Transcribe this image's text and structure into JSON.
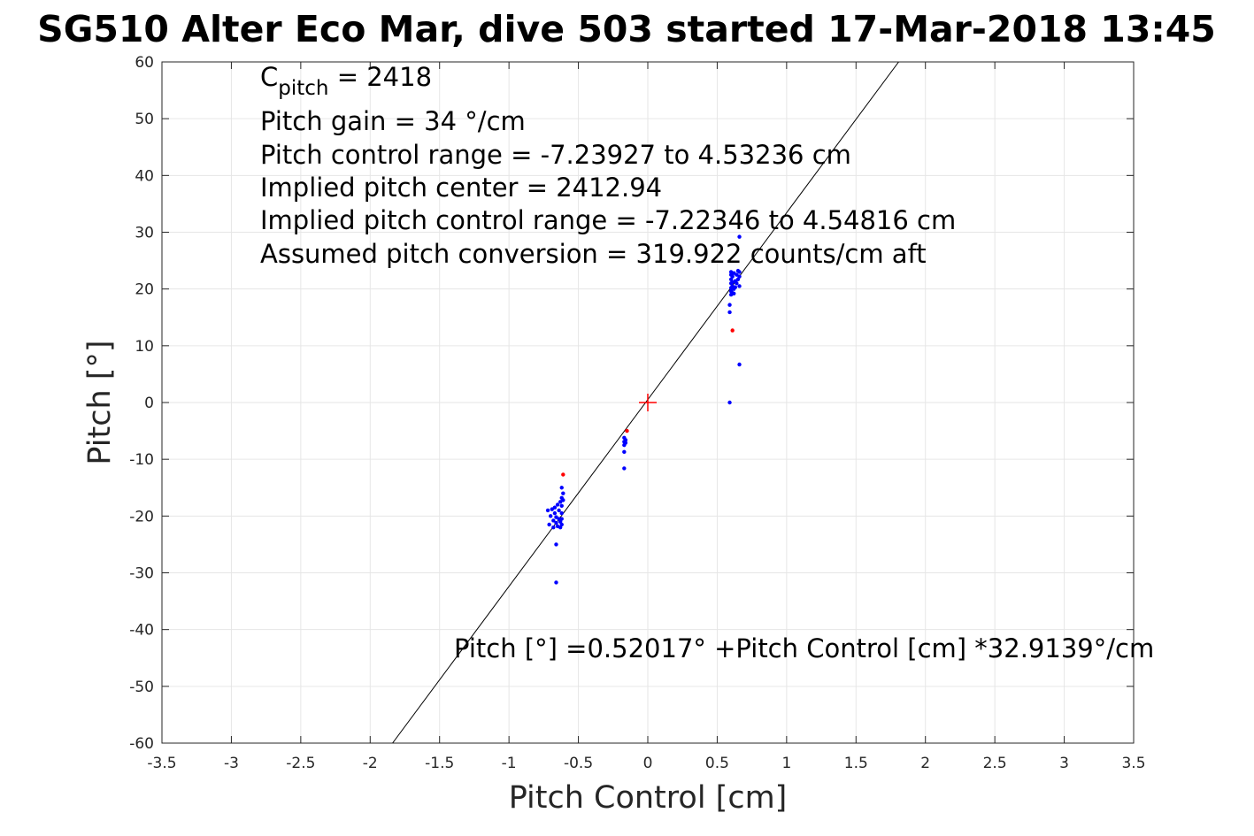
{
  "chart_data": {
    "type": "scatter",
    "title": "SG510 Alter Eco Mar, dive 503 started 17-Mar-2018 13:45",
    "xlabel": "Pitch Control [cm]",
    "ylabel": "Pitch [°]",
    "xlim": [
      -3.5,
      3.5
    ],
    "ylim": [
      -60,
      60
    ],
    "xticks": [
      -3.5,
      -3,
      -2.5,
      -2,
      -1.5,
      -1,
      -0.5,
      0,
      0.5,
      1,
      1.5,
      2,
      2.5,
      3,
      3.5
    ],
    "xtick_labels": [
      "-3.5",
      "-3",
      "-2.5",
      "-2",
      "-1.5",
      "-1",
      "-0.5",
      "0",
      "0.5",
      "1",
      "1.5",
      "2",
      "2.5",
      "3",
      "3.5"
    ],
    "yticks": [
      -60,
      -50,
      -40,
      -30,
      -20,
      -10,
      0,
      10,
      20,
      30,
      40,
      50,
      60
    ],
    "ytick_labels": [
      "-60",
      "-50",
      "-40",
      "-30",
      "-20",
      "-10",
      "0",
      "10",
      "20",
      "30",
      "40",
      "50",
      "60"
    ],
    "grid": true,
    "fit_line": {
      "intercept": 0.52017,
      "slope": 32.9139,
      "color": "#000000"
    },
    "center_marker": {
      "x": 0,
      "y": 0,
      "color": "#ff0000"
    },
    "series": [
      {
        "color": "#0000ff",
        "points": [
          [
            -0.72,
            -19
          ],
          [
            -0.71,
            -21.5
          ],
          [
            -0.7,
            -20
          ],
          [
            -0.69,
            -18.8
          ],
          [
            -0.68,
            -20.8
          ],
          [
            -0.68,
            -22
          ],
          [
            -0.67,
            -18.5
          ],
          [
            -0.67,
            -19.5
          ],
          [
            -0.66,
            -20.2
          ],
          [
            -0.66,
            -21.2
          ],
          [
            -0.66,
            -25
          ],
          [
            -0.66,
            -31.7
          ],
          [
            -0.65,
            -18
          ],
          [
            -0.65,
            -21.8
          ],
          [
            -0.64,
            -19
          ],
          [
            -0.64,
            -20.5
          ],
          [
            -0.63,
            -17.5
          ],
          [
            -0.63,
            -22
          ],
          [
            -0.63,
            -21
          ],
          [
            -0.62,
            -16.8
          ],
          [
            -0.62,
            -18.2
          ],
          [
            -0.62,
            -19.5
          ],
          [
            -0.62,
            -20.5
          ],
          [
            -0.62,
            -21.5
          ],
          [
            -0.62,
            -15
          ],
          [
            -0.61,
            -16
          ],
          [
            -0.61,
            -17.2
          ],
          [
            -0.17,
            -6.2
          ],
          [
            -0.17,
            -6.9
          ],
          [
            -0.17,
            -7.5
          ],
          [
            -0.17,
            -8.7
          ],
          [
            -0.17,
            -11.6
          ],
          [
            -0.16,
            -7.1
          ],
          [
            -0.16,
            -6.6
          ],
          [
            0.59,
            0
          ],
          [
            0.59,
            15.9
          ],
          [
            0.59,
            17.2
          ],
          [
            0.6,
            19
          ],
          [
            0.6,
            19.6
          ],
          [
            0.6,
            20.2
          ],
          [
            0.6,
            21
          ],
          [
            0.6,
            21.7
          ],
          [
            0.6,
            22.5
          ],
          [
            0.6,
            23
          ],
          [
            0.61,
            19.3
          ],
          [
            0.61,
            20.5
          ],
          [
            0.61,
            21.2
          ],
          [
            0.61,
            22.2
          ],
          [
            0.62,
            19.2
          ],
          [
            0.62,
            20
          ],
          [
            0.62,
            22.8
          ],
          [
            0.63,
            20.3
          ],
          [
            0.63,
            21.4
          ],
          [
            0.64,
            21
          ],
          [
            0.64,
            22.5
          ],
          [
            0.65,
            23.2
          ],
          [
            0.65,
            21.7
          ],
          [
            0.66,
            20.5
          ],
          [
            0.66,
            22.2
          ],
          [
            0.66,
            23
          ],
          [
            0.66,
            29.2
          ],
          [
            0.66,
            6.7
          ]
        ]
      },
      {
        "color": "#ff0000",
        "points": [
          [
            -0.61,
            -12.7
          ],
          [
            -0.15,
            -5
          ],
          [
            0.61,
            12.7
          ]
        ]
      }
    ],
    "annotations": {
      "cpitch_base": "C",
      "cpitch_sub": "pitch",
      "cpitch_rest": " = 2418",
      "lines": [
        "Pitch gain = 34 °/cm",
        "Pitch control range = -7.23927 to 4.53236 cm",
        "Implied pitch center = 2412.94",
        "Implied pitch control range = -7.22346 to 4.54816 cm",
        "Assumed pitch conversion = 319.922 counts/cm aft"
      ],
      "fit_equation": "Pitch [°] =0.52017° +Pitch Control [cm] *32.9139°/cm"
    }
  }
}
